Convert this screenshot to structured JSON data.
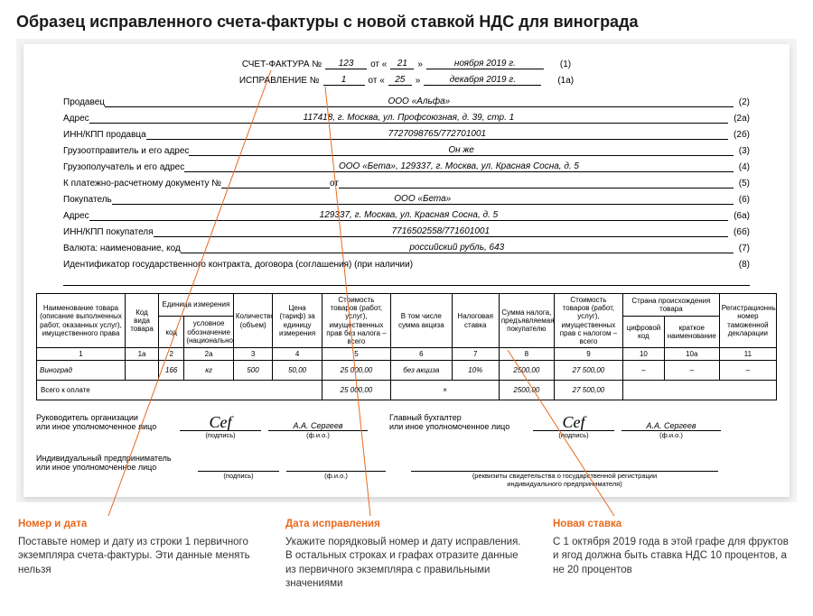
{
  "title": "Образец исправленного счета-фактуры с новой ставкой НДС для винограда",
  "top": {
    "l1_label": "СЧЕТ-ФАКТУРА  №",
    "l1_no": "123",
    "l1_ot": "от «",
    "l1_day": "21",
    "l1_close": "»",
    "l1_month": "ноября 2019 г.",
    "l1_code": "(1)",
    "l2_label": "ИСПРАВЛЕНИЕ  №",
    "l2_no": "1",
    "l2_ot": "от «",
    "l2_day": "25",
    "l2_close": "»",
    "l2_month": "декабря 2019 г.",
    "l2_code": "(1а)"
  },
  "lines": [
    {
      "label": "Продавец",
      "value": "ООО «Альфа»",
      "code": "(2)"
    },
    {
      "label": "Адрес",
      "value": "117418, г. Москва, ул. Профсоюзная, д. 39, стр. 1",
      "code": "(2а)"
    },
    {
      "label": "ИНН/КПП продавца",
      "value": "7727098765/772701001",
      "code": "(2б)"
    },
    {
      "label": "Грузоотправитель и его адрес",
      "value": "Он же",
      "code": "(3)"
    },
    {
      "label": "Грузополучатель и его адрес",
      "value": "ООО «Бета», 129337, г. Москва, ул. Красная Сосна, д. 5",
      "code": "(4)"
    },
    {
      "label": "К платежно-расчетному документу №",
      "value": "",
      "extra": "от",
      "value2": "",
      "code": "(5)"
    },
    {
      "label": "Покупатель",
      "value": "ООО «Бета»",
      "code": "(6)"
    },
    {
      "label": "Адрес",
      "value": "129337, г. Москва, ул. Красная Сосна, д. 5",
      "code": "(6а)"
    },
    {
      "label": "ИНН/КПП покупателя",
      "value": "7716502558/771601001",
      "code": "(6б)"
    },
    {
      "label": "Валюта: наименование, код",
      "value": "российский рубль, 643",
      "code": "(7)"
    },
    {
      "label": "Идентификатор государственного контракта, договора (соглашения) (при наличии)",
      "value": "",
      "code": "(8)",
      "nouline": true
    }
  ],
  "headers": {
    "c1": "Наименование товара (описание выполненных работ, оказанных услуг), имущественного права",
    "c1a": "Код вида товара",
    "c2g": "Единица измерения",
    "c2": "код",
    "c2a": "условное обозначение (национальное)",
    "c3": "Количество (объем)",
    "c4": "Цена (тариф) за единицу измерения",
    "c5": "Стоимость товаров (работ, услуг), имущественных прав без налога – всего",
    "c6": "В том числе сумма акциза",
    "c7": "Налоговая ставка",
    "c8": "Сумма налога, предъявляемая покупателю",
    "c9": "Стоимость товаров (работ, услуг), имущественных прав с налогом – всего",
    "c10g": "Страна происхождения товара",
    "c10": "цифровой код",
    "c10a": "краткое наименование",
    "c11": "Регистрационный номер таможенной декларации"
  },
  "numrow": [
    "1",
    "1а",
    "2",
    "2а",
    "3",
    "4",
    "5",
    "6",
    "7",
    "8",
    "9",
    "10",
    "10а",
    "11"
  ],
  "row": {
    "name": "Виноград",
    "kind": "",
    "ucode": "166",
    "uname": "кг",
    "qty": "500",
    "price": "50,00",
    "sum_no_tax": "25 000,00",
    "excise": "без акциза",
    "rate": "10%",
    "tax": "2500,00",
    "sum_tax": "27 500,00",
    "c10": "–",
    "c10a": "–",
    "c11": "–"
  },
  "total": {
    "label": "Всего к оплате",
    "sum_no_tax": "25 000,00",
    "x": "×",
    "tax": "2500,00",
    "sum_tax": "27 500,00"
  },
  "sig": {
    "head": "Руководитель организации\nили иное уполномоченное лицо",
    "acc": "Главный бухгалтер\nили иное уполномоченное лицо",
    "ip": "Индивидуальный предприниматель\nили иное уполномоченное лицо",
    "sub_sign": "(подпись)",
    "sub_fio": "(ф.и.о.)",
    "sign_glyph": "Cef",
    "fio": "А.А. Сергеев",
    "rekv": "(реквизиты свидетельства о государственной регистрации\nиндивидуального предпринимателя)"
  },
  "notes": [
    {
      "title": "Номер и дата",
      "text": "Поставьте номер и дату из строки 1 первичного экземпляра счета-фактуры. Эти данные менять нельзя"
    },
    {
      "title": "Дата исправления",
      "text": "Укажите порядковый номер и дату исправления. В остальных строках и графах отразите данные из первичного экземпляра с правильными значениями"
    },
    {
      "title": "Новая ставка",
      "text": "С 1 октября 2019 года в этой графе для фруктов и ягод должна быть ставка НДС 10 процентов, а не 20 процентов"
    }
  ],
  "style": {
    "accent": "#e9691e",
    "line_color": "#e9691e"
  }
}
